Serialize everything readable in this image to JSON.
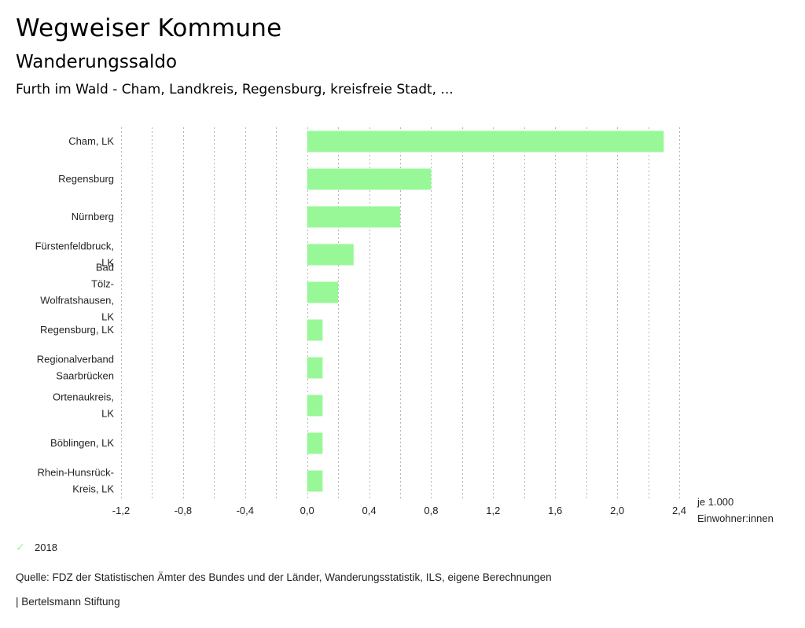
{
  "header": {
    "title": "Wegweiser Kommune",
    "subtitle": "Wanderungssaldo",
    "region": "Furth im Wald - Cham, Landkreis, Regensburg, kreisfreie Stadt, ..."
  },
  "chart_data": {
    "type": "bar",
    "orientation": "horizontal",
    "categories": [
      [
        "Cham, LK"
      ],
      [
        "Regensburg"
      ],
      [
        "Nürnberg"
      ],
      [
        "Fürstenfeldbruck,",
        "LK"
      ],
      [
        "Bad",
        "Tölz-",
        "Wolfratshausen,",
        "LK"
      ],
      [
        "Regensburg, LK"
      ],
      [
        "Regionalverband",
        "Saarbrücken"
      ],
      [
        "Ortenaukreis,",
        "LK"
      ],
      [
        "Böblingen, LK"
      ],
      [
        "Rhein-Hunsrück-",
        "Kreis, LK"
      ]
    ],
    "series": [
      {
        "name": "2018",
        "color": "#98f898",
        "values": [
          2.3,
          0.8,
          0.6,
          0.3,
          0.2,
          0.1,
          0.1,
          0.1,
          0.1,
          0.1
        ]
      }
    ],
    "xlim": [
      -1.2,
      2.4
    ],
    "xticks": [
      -1.2,
      -0.8,
      -0.4,
      0.0,
      0.4,
      0.8,
      1.2,
      1.6,
      2.0,
      2.4
    ],
    "xtick_labels": [
      "-1,2",
      "-0,8",
      "-0,4",
      "0,0",
      "0,4",
      "0,8",
      "1,2",
      "1,6",
      "2,0",
      "2,4"
    ],
    "grid_step": 0.2,
    "grid": true,
    "xlabel_lines": [
      "je 1.000",
      "Einwohner:innen"
    ],
    "legend_position": "bottom-left"
  },
  "legend": {
    "icon": "check-icon",
    "label": "2018"
  },
  "footer": {
    "source": "Quelle: FDZ der Statistischen Ämter des Bundes und der Länder, Wanderungsstatistik, ILS, eigene Berechnungen",
    "brand": "| Bertelsmann Stiftung"
  }
}
